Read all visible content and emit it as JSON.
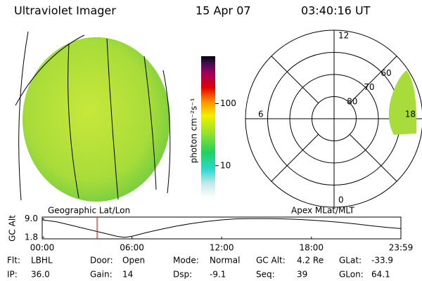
{
  "header": {
    "title": "Ultraviolet Imager",
    "date": "15 Apr 07",
    "time": "03:40:16 UT"
  },
  "colorbar": {
    "label": "photon cm⁻²s⁻¹",
    "log": true,
    "clim": [
      3,
      580
    ],
    "ticks": [
      10,
      100
    ]
  },
  "panels": {
    "left": "Geographic Lat/Lon",
    "right": "Apex MLat/MLT"
  },
  "polar": {
    "lat_lim": [
      50,
      90
    ],
    "lat_circles": [
      50,
      60,
      70,
      80
    ],
    "lat_labels": [
      60,
      70,
      80
    ],
    "mlt_labels": [
      12,
      18,
      0,
      6
    ]
  },
  "altitude_plot": {
    "ylabel": "GC Alt",
    "xlim": [
      0,
      23.983
    ],
    "ylim": [
      1.2,
      9.7
    ],
    "xticks": [
      {
        "value": 0,
        "label": "00:00"
      },
      {
        "value": 6,
        "label": "06:00"
      },
      {
        "value": 12,
        "label": "12:00"
      },
      {
        "value": 18,
        "label": "18:00"
      },
      {
        "value": 23.983,
        "label": "23:59"
      }
    ],
    "yticks": [
      {
        "value": 9.0,
        "label": "9.0"
      },
      1.8
    ],
    "x": [
      0,
      1,
      2,
      3,
      4,
      5,
      5.5,
      6,
      7,
      8,
      9,
      10,
      11,
      12,
      13,
      14,
      15,
      16,
      17,
      18,
      19,
      20,
      21,
      22,
      23,
      23.983
    ],
    "values": [
      8.6,
      7.8,
      6.4,
      5.0,
      3.6,
      2.2,
      1.8,
      2.2,
      3.7,
      5.0,
      6.2,
      7.2,
      8.0,
      8.6,
      9.0,
      9.1,
      9.1,
      9.0,
      8.8,
      8.5,
      8.1,
      7.6,
      7.0,
      6.3,
      5.7,
      5.2
    ],
    "current_hour": 3.67,
    "current_color": "#dd0000"
  },
  "status": [
    [
      "Flt:",
      "LBHL"
    ],
    [
      "IP:",
      "36.0"
    ],
    [
      "Door:",
      "Open"
    ],
    [
      "Gain:",
      "14"
    ],
    [
      "Mode:",
      "Normal"
    ],
    [
      "Dsp:",
      "-9.1"
    ],
    [
      "GC Alt:",
      "4.2 Re"
    ],
    [
      "Seq:",
      "39"
    ],
    [
      "GLat:",
      "-33.9"
    ],
    [
      "GLon:",
      "64.1"
    ]
  ]
}
